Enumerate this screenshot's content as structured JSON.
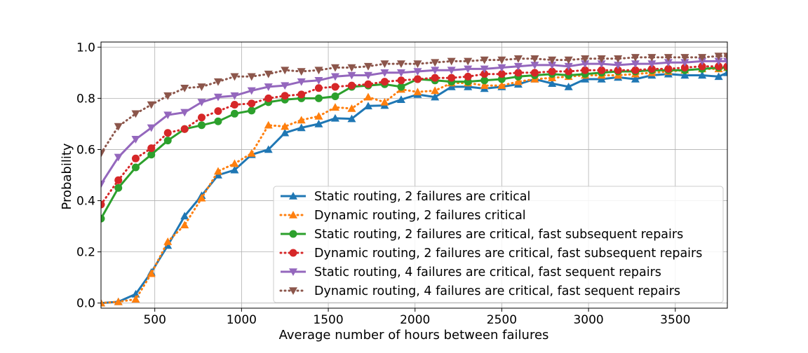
{
  "chart_data": {
    "type": "line",
    "title": "",
    "xlabel": "Average number of hours between failures",
    "ylabel": "Probability",
    "xlim": [
      190,
      3800
    ],
    "ylim": [
      -0.02,
      1.02
    ],
    "grid": true,
    "legend_position": "lower-right",
    "xticks": [
      500,
      1000,
      1500,
      2000,
      2500,
      3000,
      3500
    ],
    "xtick_labels": [
      "500",
      "1000",
      "1500",
      "2000",
      "2500",
      "3000",
      "3500"
    ],
    "yticks": [
      0.0,
      0.2,
      0.4,
      0.6,
      0.8,
      1.0
    ],
    "ytick_labels": [
      "0.0",
      "0.2",
      "0.4",
      "0.6",
      "0.8",
      "1.0"
    ],
    "x": [
      190,
      290,
      390,
      480,
      575,
      672,
      770,
      865,
      960,
      1058,
      1155,
      1250,
      1345,
      1445,
      1540,
      1635,
      1730,
      1825,
      1920,
      2015,
      2115,
      2210,
      2305,
      2400,
      2500,
      2595,
      2690,
      2790,
      2885,
      2980,
      3075,
      3170,
      3270,
      3365,
      3460,
      3555,
      3655,
      3750,
      3800
    ],
    "series": [
      {
        "name": "Static routing, 2 failures are critical",
        "color": "#1f77b4",
        "linestyle": "solid",
        "marker": "triangle-up",
        "values": [
          0.0,
          0.005,
          0.035,
          0.12,
          0.225,
          0.34,
          0.42,
          0.5,
          0.52,
          0.58,
          0.6,
          0.665,
          0.685,
          0.7,
          0.722,
          0.72,
          0.77,
          0.772,
          0.795,
          0.815,
          0.805,
          0.845,
          0.845,
          0.838,
          0.845,
          0.855,
          0.875,
          0.858,
          0.845,
          0.875,
          0.875,
          0.882,
          0.875,
          0.89,
          0.895,
          0.89,
          0.89,
          0.885,
          0.9
        ]
      },
      {
        "name": "Dynamic routing, 2 failures critical",
        "color": "#ff7f0e",
        "linestyle": "dotted",
        "marker": "triangle-up",
        "values": [
          0.0,
          0.005,
          0.015,
          0.115,
          0.24,
          0.305,
          0.41,
          0.515,
          0.545,
          0.585,
          0.695,
          0.69,
          0.715,
          0.73,
          0.765,
          0.76,
          0.805,
          0.785,
          0.835,
          0.825,
          0.83,
          0.86,
          0.86,
          0.85,
          0.85,
          0.865,
          0.875,
          0.88,
          0.885,
          0.89,
          0.89,
          0.89,
          0.895,
          0.9,
          0.905,
          0.91,
          0.915,
          0.915,
          0.92
        ]
      },
      {
        "name": "Static routing, 2 failures are critical, fast subsequent repairs",
        "color": "#2ca02c",
        "linestyle": "solid",
        "marker": "circle",
        "values": [
          0.33,
          0.45,
          0.53,
          0.58,
          0.635,
          0.68,
          0.695,
          0.71,
          0.74,
          0.752,
          0.785,
          0.795,
          0.8,
          0.8,
          0.808,
          0.845,
          0.85,
          0.855,
          0.845,
          0.875,
          0.87,
          0.865,
          0.865,
          0.87,
          0.875,
          0.885,
          0.89,
          0.895,
          0.89,
          0.895,
          0.9,
          0.905,
          0.905,
          0.91,
          0.91,
          0.91,
          0.915,
          0.92,
          0.92
        ]
      },
      {
        "name": "Dynamic routing, 2 failures are critical, fast subsequent repairs",
        "color": "#d62728",
        "linestyle": "dotted",
        "marker": "circle",
        "values": [
          0.385,
          0.48,
          0.565,
          0.605,
          0.665,
          0.68,
          0.725,
          0.75,
          0.775,
          0.78,
          0.8,
          0.81,
          0.815,
          0.84,
          0.845,
          0.85,
          0.855,
          0.865,
          0.87,
          0.875,
          0.88,
          0.88,
          0.885,
          0.895,
          0.895,
          0.9,
          0.9,
          0.905,
          0.905,
          0.91,
          0.91,
          0.91,
          0.91,
          0.915,
          0.915,
          0.92,
          0.925,
          0.925,
          0.925
        ]
      },
      {
        "name": "Static routing, 4 failures are critical, fast sequent repairs",
        "color": "#9467bd",
        "linestyle": "solid",
        "marker": "triangle-down",
        "values": [
          0.465,
          0.57,
          0.64,
          0.685,
          0.735,
          0.745,
          0.785,
          0.805,
          0.81,
          0.83,
          0.845,
          0.85,
          0.865,
          0.87,
          0.885,
          0.89,
          0.89,
          0.9,
          0.9,
          0.905,
          0.91,
          0.91,
          0.915,
          0.915,
          0.92,
          0.925,
          0.93,
          0.93,
          0.925,
          0.935,
          0.935,
          0.93,
          0.935,
          0.935,
          0.94,
          0.94,
          0.945,
          0.945,
          0.945
        ]
      },
      {
        "name": "Dynamic routing, 4 failures are critical, fast sequent repairs",
        "color": "#8c564b",
        "linestyle": "dotted",
        "marker": "triangle-down",
        "values": [
          0.585,
          0.69,
          0.74,
          0.775,
          0.81,
          0.84,
          0.845,
          0.865,
          0.885,
          0.885,
          0.895,
          0.91,
          0.905,
          0.91,
          0.92,
          0.92,
          0.925,
          0.935,
          0.935,
          0.935,
          0.94,
          0.945,
          0.945,
          0.95,
          0.95,
          0.955,
          0.955,
          0.95,
          0.95,
          0.955,
          0.955,
          0.955,
          0.96,
          0.96,
          0.96,
          0.96,
          0.96,
          0.965,
          0.965
        ]
      }
    ]
  }
}
